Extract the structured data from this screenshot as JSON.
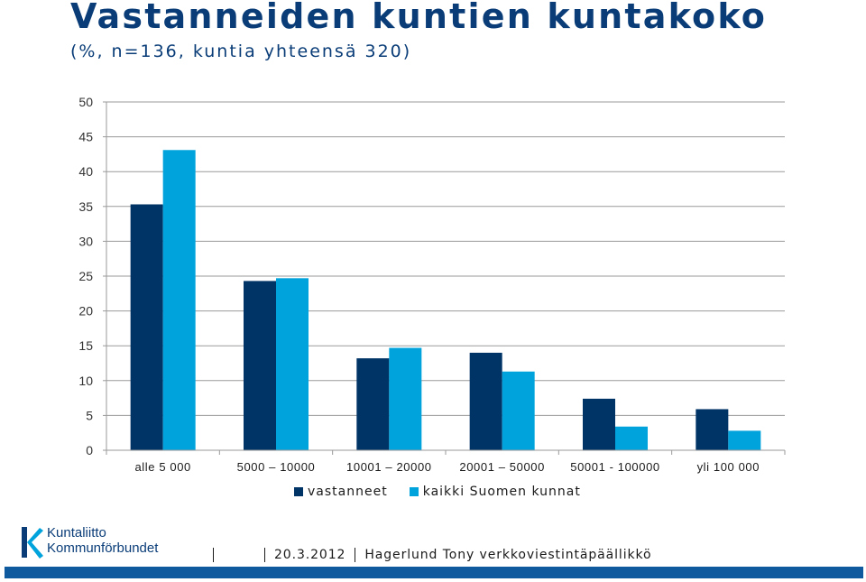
{
  "header": {
    "title": "Vastanneiden kuntien kuntakoko",
    "subtitle": "(%, n=136, kuntia yhteensä 320)"
  },
  "chart_data": {
    "type": "bar",
    "categories": [
      "alle 5 000",
      "5000 – 10000",
      "10001 – 20000",
      "20001 – 50000",
      "50001 - 100000",
      "yli 100 000"
    ],
    "series": [
      {
        "name": "vastanneet",
        "values": [
          35.3,
          24.3,
          13.2,
          14.0,
          7.4,
          5.9
        ],
        "color": "#003366"
      },
      {
        "name": "kaikki Suomen kunnat",
        "values": [
          43.1,
          24.7,
          14.7,
          11.3,
          3.4,
          2.8
        ],
        "color": "#00a3dc"
      }
    ],
    "yticks": [
      0,
      5,
      10,
      15,
      20,
      25,
      30,
      35,
      40,
      45,
      50
    ],
    "ylim": [
      0,
      50
    ],
    "grid": true,
    "legend_position": "bottom"
  },
  "logo": {
    "line1": "Kuntaliitto",
    "line2": "Kommunförbundet",
    "icon": "kuntaliitto-logo-icon"
  },
  "footer": {
    "date": "20.3.2012",
    "author": "Hagerlund Tony verkkoviestintäpäällikkö"
  },
  "colors": {
    "title": "#0a3d78",
    "bottom_bar": "#0f5a9e"
  }
}
